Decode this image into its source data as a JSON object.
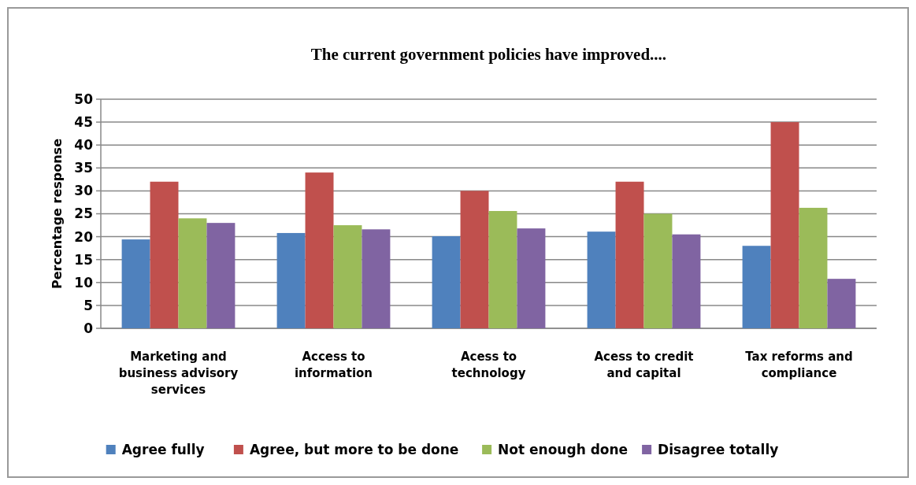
{
  "chart_data": {
    "type": "bar",
    "title": "The current government policies have improved....",
    "ylabel": "Percentage response",
    "categories": [
      "Marketing and business advisory services",
      "Access to information",
      "Acess to technology",
      "Acess to credit and capital",
      "Tax reforms and compliance"
    ],
    "series": [
      {
        "name": "Agree fully",
        "color": "#4f81bd",
        "values": [
          19.4,
          20.8,
          20.1,
          21.1,
          18.0
        ]
      },
      {
        "name": "Agree, but more to be done",
        "color": "#c0504d",
        "values": [
          32,
          34,
          30,
          32,
          45
        ]
      },
      {
        "name": "Not enough done",
        "color": "#9bbb59",
        "values": [
          24,
          22.5,
          25.6,
          25,
          26.3
        ]
      },
      {
        "name": "Disagree totally",
        "color": "#8064a2",
        "values": [
          23,
          21.6,
          21.8,
          20.5,
          10.8
        ]
      }
    ],
    "ylim": [
      0,
      50
    ],
    "yticks": [
      0,
      5,
      10,
      15,
      20,
      25,
      30,
      35,
      40,
      45,
      50
    ],
    "grid": "y",
    "legend": "bottom"
  }
}
